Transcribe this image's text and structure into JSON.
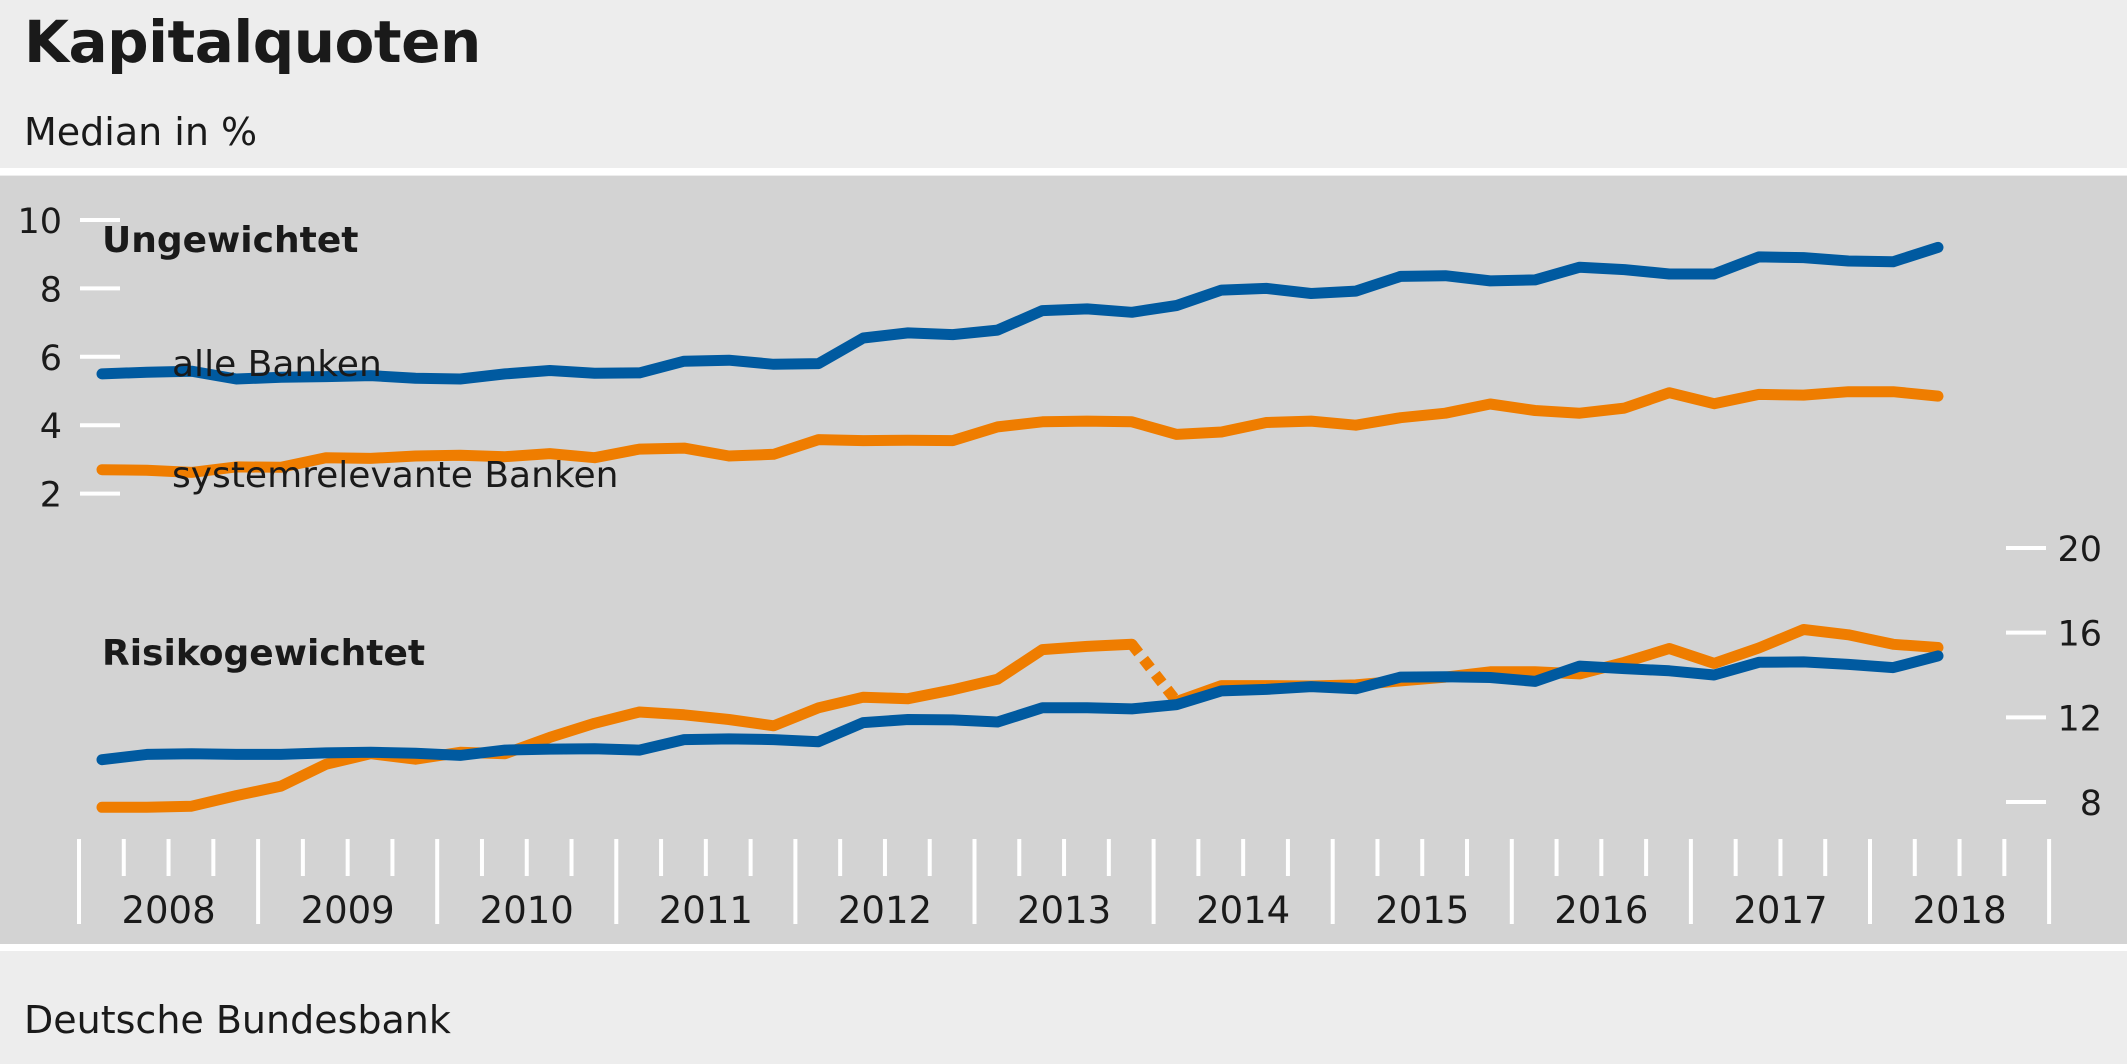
{
  "title": "Kapitalquoten",
  "subtitle": "Median in %",
  "footer": "Deutsche Bundesbank",
  "colors": {
    "alle_banken": "#005aa0",
    "systemrelevante_banken": "#ef7d00",
    "panel": "#d3d3d3",
    "separator": "#ffffff"
  },
  "chart_data": [
    {
      "type": "line",
      "title": "Ungewichtet",
      "ylim": [
        0,
        10
      ],
      "y_ticks": [
        "10",
        "8",
        "6",
        "4",
        "2"
      ],
      "x_start": 2008.0,
      "x_end": 2018.0,
      "x_step": 0.25,
      "series": [
        {
          "name": "alle Banken",
          "values": [
            5.5,
            5.55,
            5.58,
            5.35,
            5.4,
            5.42,
            5.45,
            5.37,
            5.35,
            5.5,
            5.6,
            5.52,
            5.53,
            5.87,
            5.9,
            5.78,
            5.8,
            6.55,
            6.7,
            6.65,
            6.78,
            7.35,
            7.4,
            7.3,
            7.5,
            7.95,
            8.0,
            7.85,
            7.92,
            8.35,
            8.37,
            8.22,
            8.25,
            8.62,
            8.55,
            8.42,
            8.42,
            8.92,
            8.9,
            8.8,
            8.78,
            9.2
          ]
        },
        {
          "name": "systemrelevante Banken",
          "values": [
            2.7,
            2.68,
            2.62,
            2.78,
            2.77,
            3.05,
            3.03,
            3.1,
            3.12,
            3.08,
            3.17,
            3.05,
            3.3,
            3.33,
            3.1,
            3.15,
            3.58,
            3.55,
            3.56,
            3.55,
            3.95,
            4.1,
            4.12,
            4.1,
            3.73,
            3.8,
            4.08,
            4.12,
            4.0,
            4.22,
            4.35,
            4.62,
            4.43,
            4.35,
            4.5,
            4.95,
            4.63,
            4.9,
            4.88,
            4.98,
            4.98,
            4.85
          ]
        }
      ]
    },
    {
      "type": "line",
      "title": "Risikogewichtet",
      "ylim": [
        8,
        20
      ],
      "y_ticks": [
        "20",
        "16",
        "12",
        "8"
      ],
      "x_start": 2008.0,
      "x_end": 2018.0,
      "x_step": 0.25,
      "series": [
        {
          "name": "alle Banken",
          "values": [
            10.0,
            10.25,
            10.28,
            10.25,
            10.25,
            10.32,
            10.35,
            10.3,
            10.2,
            10.45,
            10.5,
            10.52,
            10.45,
            10.95,
            10.98,
            10.95,
            10.85,
            11.75,
            11.9,
            11.88,
            11.78,
            12.45,
            12.45,
            12.4,
            12.6,
            13.25,
            13.32,
            13.45,
            13.35,
            13.9,
            13.92,
            13.88,
            13.7,
            14.42,
            14.3,
            14.2,
            14.0,
            14.6,
            14.62,
            14.5,
            14.35,
            14.9
          ]
        },
        {
          "name": "systemrelevante Banken",
          "values": [
            7.75,
            7.75,
            7.8,
            8.3,
            8.75,
            9.78,
            10.28,
            10.02,
            10.35,
            10.28,
            11.05,
            11.72,
            12.25,
            12.12,
            11.9,
            11.6,
            12.45,
            12.95,
            12.88,
            13.3,
            13.8,
            15.2,
            15.35,
            15.45,
            12.75,
            13.5,
            13.5,
            13.48,
            13.53,
            13.72,
            13.9,
            14.15,
            14.15,
            14.05,
            14.6,
            15.25,
            14.55,
            15.28,
            16.15,
            15.9,
            15.45,
            15.3
          ],
          "dashed_segment_after_index": 23
        }
      ]
    }
  ],
  "x_axis_labels": [
    "2008",
    "2009",
    "2010",
    "2011",
    "2012",
    "2013",
    "2014",
    "2015",
    "2016",
    "2017",
    "2018"
  ],
  "annotations": {
    "alle_banken": "alle Banken",
    "systemrelevante_banken": "systemrelevante Banken"
  }
}
